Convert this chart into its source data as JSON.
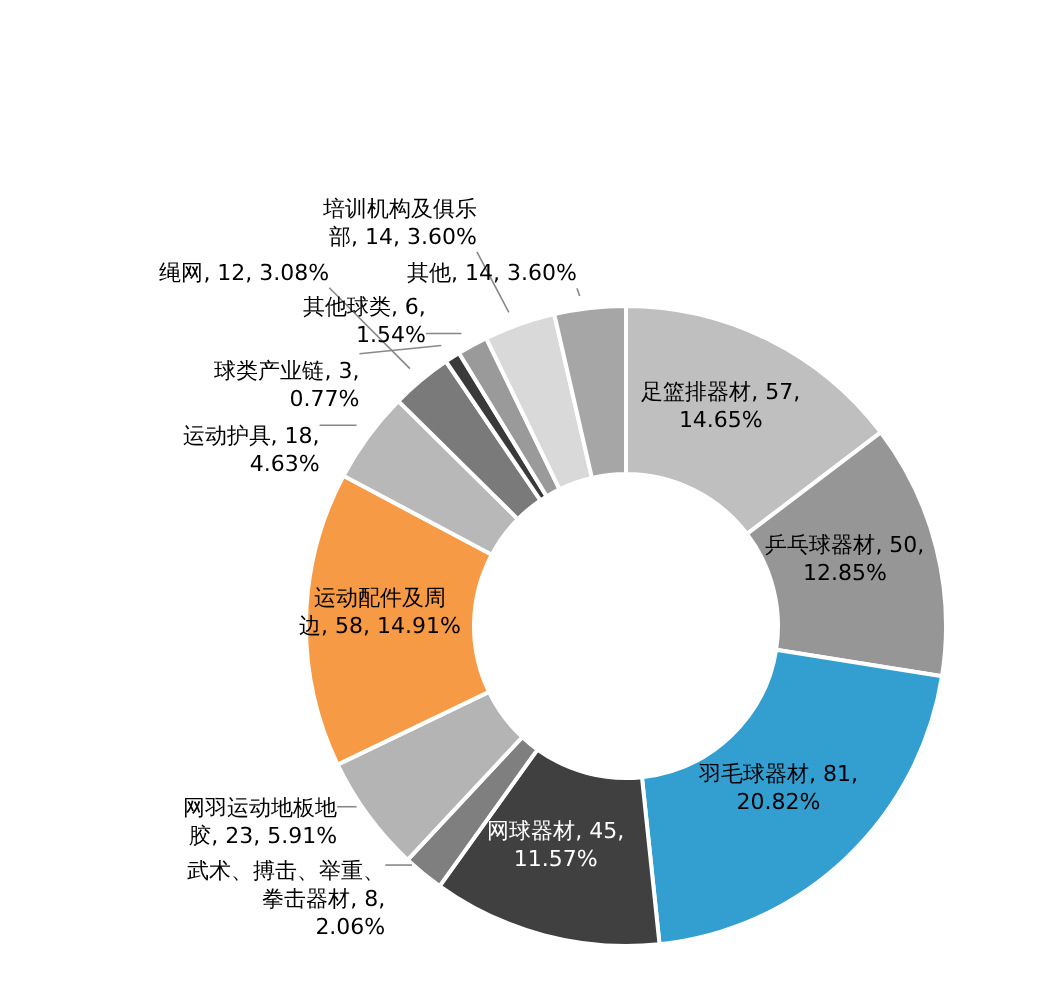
{
  "chart_data": {
    "type": "donut",
    "categories": [
      "足篮排器材",
      "乒乓球器材",
      "羽毛球器材",
      "网球器材",
      "武术、搏击、举重、拳击器材",
      "网羽运动地板地胶",
      "运动配件及周边",
      "运动护具",
      "绳网",
      "球类产业链",
      "其他球类",
      "培训机构及俱乐部",
      "其他"
    ],
    "values": [
      57,
      50,
      81,
      45,
      8,
      23,
      58,
      18,
      12,
      3,
      6,
      14,
      14
    ],
    "value_labels": [
      "57, 14.65%",
      "50, 12.85%",
      "81, 20.82%",
      "45, 11.57%",
      "8, 2.06%",
      "23, 5.91%",
      "58, 14.91%",
      "18, 4.63%",
      "12, 3.08%",
      "3, 0.77%",
      "6, 1.54%",
      "14, 3.60%",
      "14, 3.60%"
    ],
    "colors": [
      "#bfbfbf",
      "#969696",
      "#339fd1",
      "#404040",
      "#7f7f7f",
      "#b4b4b4",
      "#f79a46",
      "#b8b8b8",
      "#7a7a7a",
      "#3a3a3a",
      "#9a9a9a",
      "#d9d9d9",
      "#a6a6a6"
    ]
  }
}
